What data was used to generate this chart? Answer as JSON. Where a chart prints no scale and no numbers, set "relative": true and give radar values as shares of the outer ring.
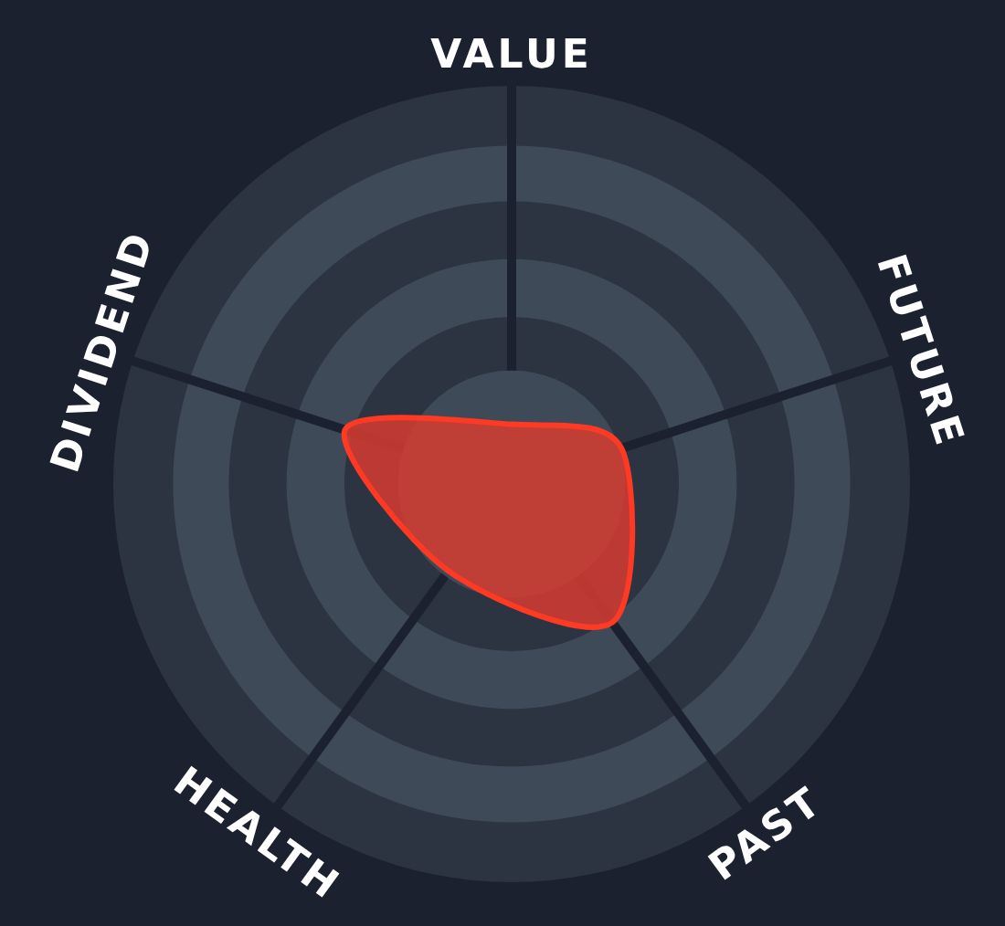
{
  "chart_data": {
    "type": "radar",
    "relative": true,
    "grid": true,
    "categories": [
      "VALUE",
      "FUTURE",
      "PAST",
      "HEALTH",
      "DIVIDEND"
    ],
    "series": [
      {
        "color": "#d63c30",
        "values": [
          0.15,
          0.29,
          0.43,
          0.27,
          0.44
        ]
      }
    ]
  }
}
